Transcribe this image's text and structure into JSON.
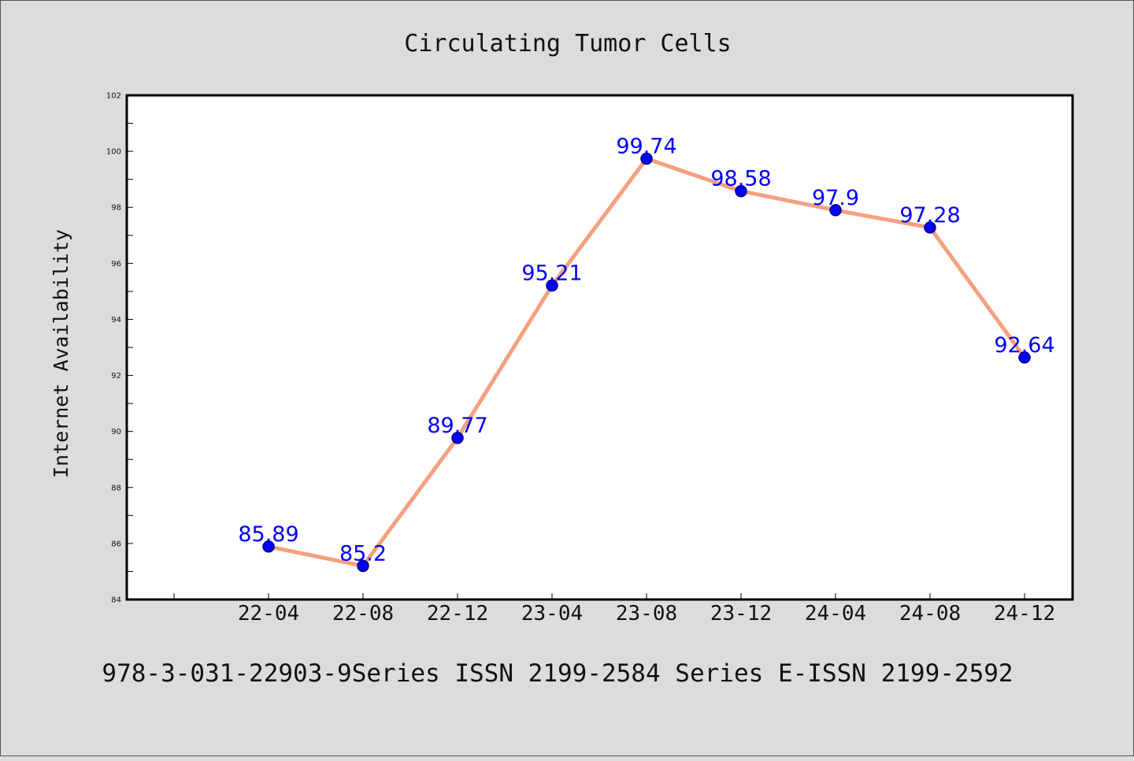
{
  "chart_data": {
    "type": "line",
    "title": "Circulating Tumor Cells",
    "xlabel": "",
    "ylabel": "Internet Availability",
    "categories": [
      "22-04",
      "22-08",
      "22-12",
      "23-04",
      "23-08",
      "23-12",
      "24-04",
      "24-08",
      "24-12"
    ],
    "series": [
      {
        "values": [
          85.89,
          85.2,
          89.77,
          95.21,
          99.74,
          98.58,
          97.9,
          97.28,
          92.64
        ],
        "labels": [
          "85.89",
          "85.2",
          "89.77",
          "95.21",
          "99.74",
          "98.58",
          "97.9",
          "97.28",
          "92.64"
        ]
      }
    ],
    "ylim": [
      84,
      102
    ],
    "yticks": [
      "84",
      "86",
      "88",
      "90",
      "92",
      "94",
      "96",
      "98",
      "100",
      "102"
    ],
    "grid": false,
    "legend": "none",
    "colors": {
      "line": "#f4a07e",
      "marker": "#0000ff",
      "marker_edge": "#000080",
      "data_label": "#0000ff",
      "background": "#dcdcdc",
      "plot_background": "#ffffff"
    }
  },
  "footer": {
    "text": "978-3-031-22903-9Series ISSN 2199-2584 Series E-ISSN 2199-2592"
  }
}
